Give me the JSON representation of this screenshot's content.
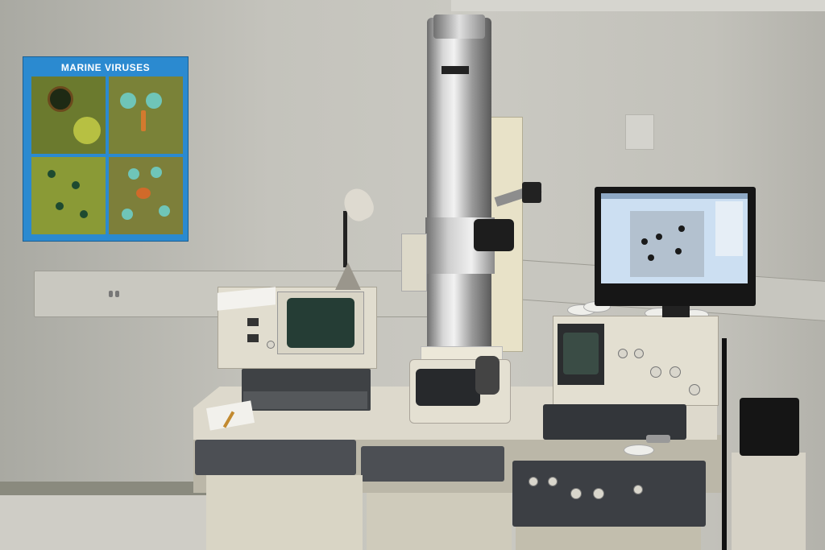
{
  "poster": {
    "title": "MARINE VIRUSES"
  },
  "colors": {
    "poster_frame": "#2b8ad0",
    "wall": "#c4c3bc",
    "desk": "#ddd9cc",
    "column_steel": "#d7d7d7"
  },
  "icons": {
    "lamp": "desk-lamp-icon",
    "microscope": "electron-microscope-icon",
    "monitor": "monitor-icon"
  }
}
